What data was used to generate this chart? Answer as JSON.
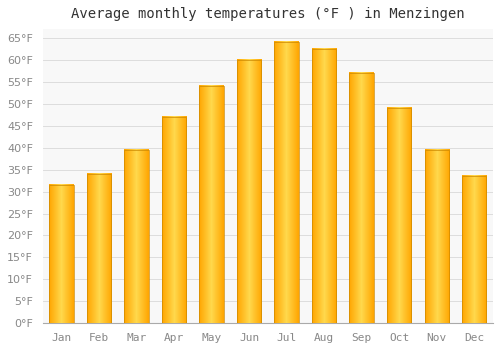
{
  "title": "Average monthly temperatures (°F ) in Menzingen",
  "months": [
    "Jan",
    "Feb",
    "Mar",
    "Apr",
    "May",
    "Jun",
    "Jul",
    "Aug",
    "Sep",
    "Oct",
    "Nov",
    "Dec"
  ],
  "values": [
    31.5,
    34.0,
    39.5,
    47.0,
    54.0,
    60.0,
    64.0,
    62.5,
    57.0,
    49.0,
    39.5,
    33.5
  ],
  "bar_color_left": "#FFA500",
  "bar_color_center": "#FFD966",
  "bar_color_right": "#FFA500",
  "background_color": "#FFFFFF",
  "plot_bg_color": "#F8F8F8",
  "grid_color": "#DDDDDD",
  "ylim": [
    0,
    67
  ],
  "ytick_max": 65,
  "ytick_step": 5,
  "title_fontsize": 10,
  "tick_fontsize": 8,
  "font_family": "monospace"
}
